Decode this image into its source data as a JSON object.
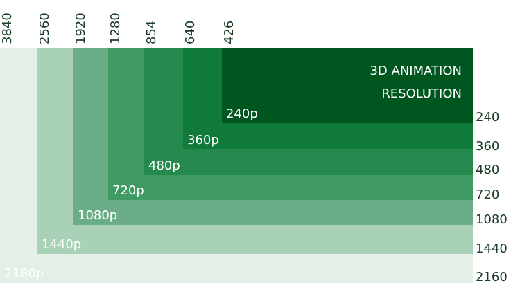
{
  "title": [
    "3D ANIMATION",
    "RESOLUTION"
  ],
  "resolutions": [
    {
      "name": "2160p",
      "width": 3840,
      "height": 2160
    },
    {
      "name": "1440p",
      "width": 2560,
      "height": 1440
    },
    {
      "name": "1080p",
      "width": 1920,
      "height": 1080
    },
    {
      "name": "720p",
      "width": 1280,
      "height": 720
    },
    {
      "name": "480p",
      "width": 854,
      "height": 480
    },
    {
      "name": "360p",
      "width": 640,
      "height": 360
    },
    {
      "name": "240p",
      "width": 426,
      "height": 240
    }
  ]
}
